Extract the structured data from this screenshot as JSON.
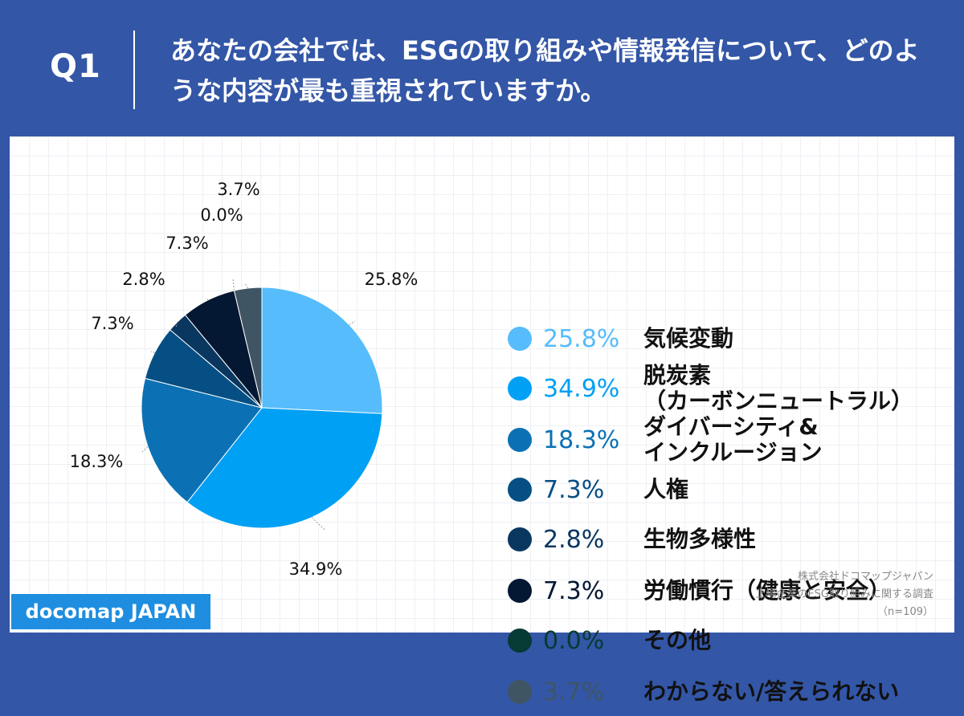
{
  "header": {
    "question_number": "Q1",
    "question_text": "あなたの会社では、ESGの取り組みや情報発信について、どのような内容が最も重視されていますか。"
  },
  "brand": "docomap JAPAN",
  "source": {
    "line1": "株式会社ドコマップジャパン",
    "line2": "上場企業のESG取り組みに関する調査",
    "line3": "（n=109）"
  },
  "colors": {
    "header_bg": "#3356a6",
    "brand_bg": "#1f8ee0"
  },
  "chart_data": {
    "type": "pie",
    "start_angle": "12 o'clock, clockwise",
    "slices": [
      {
        "label": "気候変動",
        "value": 25.8,
        "display": "25.8%",
        "color": "#56bcfb"
      },
      {
        "label": "脱炭素\n（カーボンニュートラル）",
        "value": 34.9,
        "display": "34.9%",
        "color": "#00a0f5"
      },
      {
        "label": "ダイバーシティ&\nインクルージョン",
        "value": 18.3,
        "display": "18.3%",
        "color": "#0b71b4"
      },
      {
        "label": "人権",
        "value": 7.3,
        "display": "7.3%",
        "color": "#064f84"
      },
      {
        "label": "生物多様性",
        "value": 2.8,
        "display": "2.8%",
        "color": "#0a3760"
      },
      {
        "label": "労働慣行（健康と安全）",
        "value": 7.3,
        "display": "7.3%",
        "color": "#041833"
      },
      {
        "label": "その他",
        "value": 0.0,
        "display": "0.0%",
        "color": "#063a34"
      },
      {
        "label": "わからない/答えられない",
        "value": 3.7,
        "display": "3.7%",
        "color": "#3f5564"
      }
    ]
  }
}
